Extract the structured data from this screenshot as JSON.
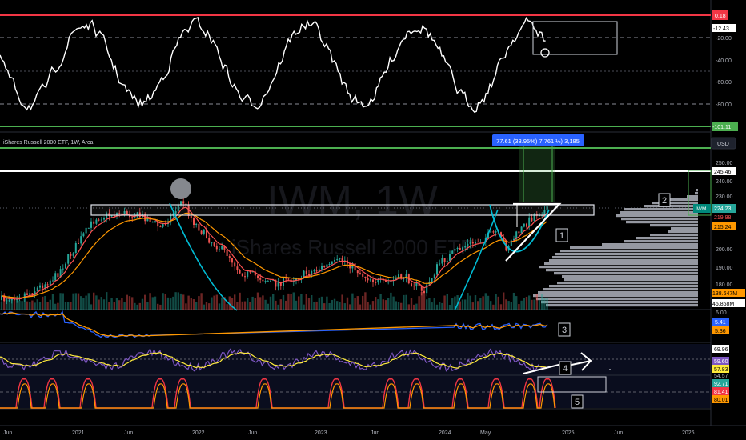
{
  "header": {
    "title": "iShares Russell 2000 ETF, 1W, Arca"
  },
  "watermark": {
    "symbol": "IWM, 1W",
    "name": "iShares Russell 2000 ETF"
  },
  "measure_label": "77.61 (33.95%) 7,761  ½) 3,185",
  "currency": "USD",
  "annotations": {
    "box1": "1",
    "box2": "2",
    "box3": "3",
    "box4": "4",
    "box5": "5"
  },
  "osc_axis": {
    "ticks": [
      "-20.00",
      "-40.00",
      "-60.00",
      "-80.00"
    ],
    "badge_top": "0.18",
    "badge_value": "-12.43",
    "badge_bottom": "-101.11"
  },
  "price_axis": {
    "ticks": [
      "250.00",
      "240.00",
      "230.00",
      "200.00",
      "190.00",
      "180.00"
    ],
    "badges": {
      "resistance": "245.46",
      "iwm_tag": "IWM",
      "last": "224.23",
      "ma_red": "219.98",
      "ma_orange": "215.24",
      "volume_ma": "138.647M",
      "volume": "46.868M"
    }
  },
  "ind3_axis": {
    "tick": "6.00",
    "badges": [
      "5.41",
      "5.36"
    ]
  },
  "ind4_axis": {
    "badges": [
      "69.96",
      "59.60",
      "57.83",
      "54.57"
    ]
  },
  "ind5_axis": {
    "badges": [
      "92.71",
      "81.41",
      "80.01"
    ]
  },
  "time_axis": {
    "labels": [
      "Jun",
      "2021",
      "Jun",
      "2022",
      "Jun",
      "2023",
      "Jun",
      "2024",
      "May",
      "2025",
      "Jun",
      "2026"
    ]
  },
  "colors": {
    "background": "#000000",
    "up": "#26a69a",
    "down": "#ef5350",
    "ma_orange": "#ff9800",
    "ma_red": "#ff5252",
    "oscillator": "#ffffff",
    "osc_top": "#f23645",
    "osc_bottom": "#4caf50",
    "ind3_blue": "#2962ff",
    "ind4_purple": "#7e57c2",
    "ind4_yellow": "#ffeb3b",
    "measure": "#2962ff"
  }
}
